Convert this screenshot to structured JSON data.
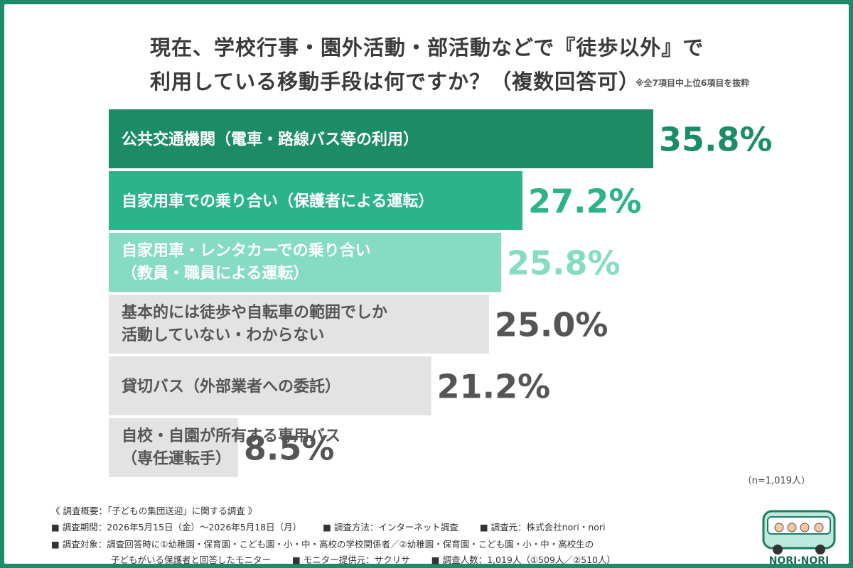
{
  "header": {
    "title_line1": "現在、学校行事・園外活動・部活動などで『徒歩以外』で",
    "title_line2": "利用している移動手段は何ですか？（複数回答可）",
    "note": "※全7項目中上位6項目を抜粋"
  },
  "chart_data": {
    "type": "bar",
    "orientation": "horizontal",
    "categories": [
      [
        "公共交通機関（電車・路線バス等の利用）"
      ],
      [
        "自家用車での乗り合い（保護者による運転）"
      ],
      [
        "自家用車・レンタカーでの乗り合い",
        "（教員・職員による運転）"
      ],
      [
        "基本的には徒歩や自転車の範囲でしか",
        "活動していない・わからない"
      ],
      [
        "貸切バス（外部業者への委託）"
      ],
      [
        "自校・自園が所有する専用バス",
        "（専任運転手）"
      ]
    ],
    "values": [
      35.8,
      27.2,
      25.8,
      25.0,
      21.2,
      8.5
    ],
    "value_labels": [
      "35.8%",
      "27.2%",
      "25.8%",
      "25.0%",
      "21.2%",
      "8.5%"
    ],
    "bar_colors": [
      "#1c8c67",
      "#2cb38a",
      "#86dcc2",
      "#e4e3e3",
      "#e4e3e3",
      "#e4e3e3"
    ],
    "label_colors": [
      "#ffffff",
      "#ffffff",
      "#ffffff",
      "#555555",
      "#555555",
      "#555555"
    ],
    "value_colors": [
      "#1c8c67",
      "#2cb38a",
      "#86dcc2",
      "#555555",
      "#555555",
      "#555555"
    ],
    "xlim": [
      0,
      35.8
    ],
    "grid": false,
    "legend": "none",
    "sample_size": "（n=1,019人）"
  },
  "footer": {
    "line0": "《 調査概要：「子どもの集団送迎」に関する調査 》",
    "line1": [
      "■ 調査期間：2026年5月15日（金）〜2026年5月18日（月）",
      "■ 調査方法：インターネット調査",
      "■ 調査元：株式会社nori・nori"
    ],
    "line2": "■ 調査対象：調査回答時に①幼稚園・保育園・こども園・小・中・高校の学校関係者／②幼稚園・保育園・こども園・小・中・高校生の",
    "line3": [
      "子どもがいる保護者と回答したモニター",
      "■ モニター提供元：サクリサ",
      "■ 調査人数：1,019人（①509人／②510人）"
    ]
  },
  "logo": {
    "text": "NORI·NORI",
    "icon": "bus-icon"
  }
}
